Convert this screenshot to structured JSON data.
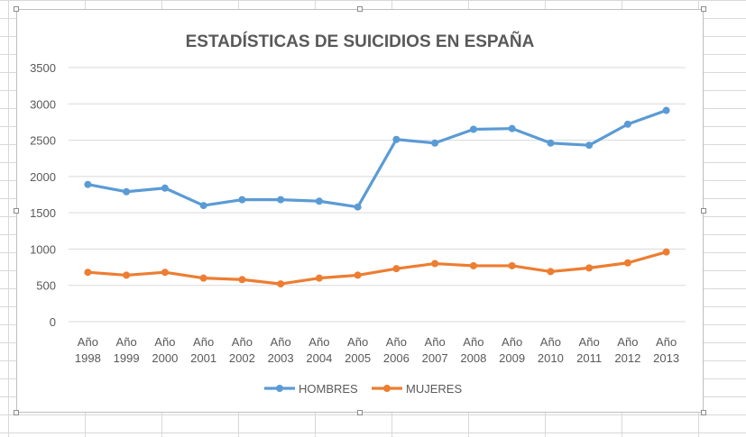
{
  "chart_data": {
    "type": "line",
    "title": "ESTADÍSTICAS DE SUICIDIOS EN ESPAÑA",
    "xlabel": "",
    "ylabel": "",
    "ylim": [
      0,
      3500
    ],
    "yticks": [
      0,
      500,
      1000,
      1500,
      2000,
      2500,
      3000,
      3500
    ],
    "grid": true,
    "legend_position": "bottom",
    "categories": [
      [
        "Año",
        "1998"
      ],
      [
        "Año",
        "1999"
      ],
      [
        "Año",
        "2000"
      ],
      [
        "Año",
        "2001"
      ],
      [
        "Año",
        "2002"
      ],
      [
        "Año",
        "2003"
      ],
      [
        "Año",
        "2004"
      ],
      [
        "Año",
        "2005"
      ],
      [
        "Año",
        "2006"
      ],
      [
        "Año",
        "2007"
      ],
      [
        "Año",
        "2008"
      ],
      [
        "Año",
        "2009"
      ],
      [
        "Año",
        "2010"
      ],
      [
        "Año",
        "2011"
      ],
      [
        "Año",
        "2012"
      ],
      [
        "Año",
        "2013"
      ]
    ],
    "series": [
      {
        "name": "HOMBRES",
        "color": "#5B9BD5",
        "values": [
          1890,
          1790,
          1840,
          1600,
          1680,
          1680,
          1660,
          1580,
          2510,
          2460,
          2650,
          2660,
          2460,
          2430,
          2720,
          2910
        ]
      },
      {
        "name": "MUJERES",
        "color": "#ED7D31",
        "values": [
          680,
          640,
          680,
          600,
          580,
          520,
          600,
          640,
          730,
          800,
          770,
          770,
          690,
          740,
          810,
          960
        ]
      }
    ]
  }
}
